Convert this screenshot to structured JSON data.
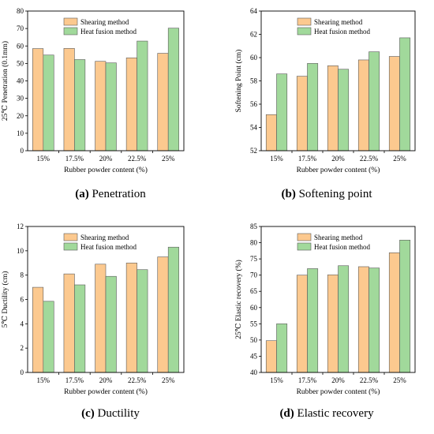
{
  "colors": {
    "shearing": "#fcc98f",
    "heat_fusion": "#a1d99b",
    "axis": "#000000"
  },
  "chart_data": [
    {
      "type": "bar",
      "panel_letter": "(a)",
      "caption": "Penetration",
      "categories": [
        "15%",
        "17.5%",
        "20%",
        "22.5%",
        "25%"
      ],
      "series": [
        {
          "name": "Shearing method",
          "values": [
            58.5,
            58.6,
            51.2,
            53.2,
            55.8
          ]
        },
        {
          "name": "Heat fusion method",
          "values": [
            54.8,
            52.2,
            50.3,
            62.8,
            70.2
          ]
        }
      ],
      "xlabel": "Rubber powder content (%)",
      "ylabel": "25℃ Penetration (0.1mm)",
      "ylim": [
        0,
        80
      ],
      "yticks": [
        0,
        10,
        20,
        30,
        40,
        50,
        60,
        70,
        80
      ],
      "legend_position": "top-left",
      "grid": false
    },
    {
      "type": "bar",
      "panel_letter": "(b)",
      "caption": "Softening point",
      "categories": [
        "15%",
        "17.5%",
        "20%",
        "22.5%",
        "25%"
      ],
      "series": [
        {
          "name": "Shearing method",
          "values": [
            55.1,
            58.4,
            59.3,
            59.8,
            60.1
          ]
        },
        {
          "name": "Heat fusion method",
          "values": [
            58.6,
            59.5,
            59.0,
            60.5,
            61.7
          ]
        }
      ],
      "xlabel": "Rubber powder content (%)",
      "ylabel": "Softening Point (cm)",
      "ylim": [
        52,
        64
      ],
      "yticks": [
        52,
        54,
        56,
        58,
        60,
        62,
        64
      ],
      "legend_position": "top-left",
      "grid": false
    },
    {
      "type": "bar",
      "panel_letter": "(c)",
      "caption": "Ductility",
      "categories": [
        "15%",
        "17.5%",
        "20%",
        "22.5%",
        "25%"
      ],
      "series": [
        {
          "name": "Shearing method",
          "values": [
            7.0,
            8.1,
            8.9,
            9.0,
            9.5
          ]
        },
        {
          "name": "Heat fusion method",
          "values": [
            5.85,
            7.2,
            7.9,
            8.45,
            10.3
          ]
        }
      ],
      "xlabel": "Rubber powder content (%)",
      "ylabel": "5℃ Ductility (cm)",
      "ylim": [
        0,
        12
      ],
      "yticks": [
        0,
        2,
        4,
        6,
        8,
        10,
        12
      ],
      "legend_position": "top-left",
      "grid": false
    },
    {
      "type": "bar",
      "panel_letter": "(d)",
      "caption": "Elastic recovery",
      "categories": [
        "15%",
        "17.5%",
        "20%",
        "22.5%",
        "25%"
      ],
      "series": [
        {
          "name": "Shearing method",
          "values": [
            49.8,
            70.0,
            70.1,
            72.6,
            76.9
          ]
        },
        {
          "name": "Heat fusion method",
          "values": [
            55.0,
            72.0,
            72.9,
            72.2,
            80.8
          ]
        }
      ],
      "xlabel": "Rubber powder content (%)",
      "ylabel": "25℃ Elastic recovery (%)",
      "ylim": [
        40,
        85
      ],
      "yticks": [
        40,
        45,
        50,
        55,
        60,
        65,
        70,
        75,
        80,
        85
      ],
      "legend_position": "top-left",
      "grid": false
    }
  ]
}
